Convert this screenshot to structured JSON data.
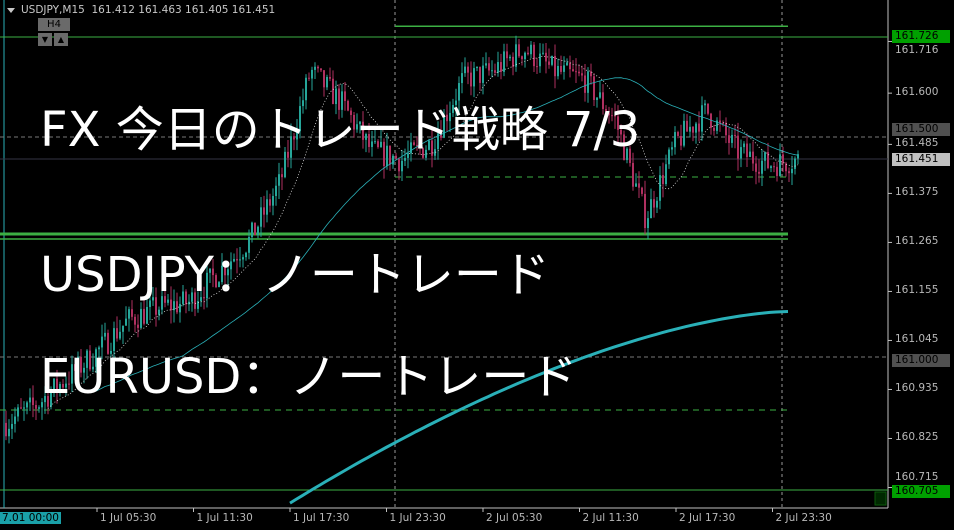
{
  "header": {
    "symbol": "USDJPY,M15",
    "ohlc": "161.412 161.463 161.405 161.451",
    "timeframe_badge": "H4"
  },
  "overlay_text": {
    "line1": "FX 今日のトレード戦略 7/3",
    "line2": "USDJPY：ノートレード",
    "line3": "EURUSD：ノートレード"
  },
  "price_axis": {
    "ticks": [
      "161.716",
      "161.600",
      "161.485",
      "161.375",
      "161.265",
      "161.155",
      "161.045",
      "160.935",
      "160.825",
      "160.715"
    ],
    "labels": [
      {
        "value": "161.726",
        "kind": "line",
        "color": "#00a000"
      },
      {
        "value": "161.500",
        "kind": "level",
        "color": "#505050"
      },
      {
        "value": "161.451",
        "kind": "bid",
        "color": "#c0c0c0"
      },
      {
        "value": "161.000",
        "kind": "level",
        "color": "#505050"
      },
      {
        "value": "160.705",
        "kind": "line",
        "color": "#00a000"
      }
    ]
  },
  "time_axis": {
    "current_label": "7.01 00:00",
    "ticks": [
      "1 Jul 05:30",
      "1 Jul 11:30",
      "1 Jul 17:30",
      "1 Jul 23:30",
      "2 Jul 05:30",
      "2 Jul 11:30",
      "2 Jul 17:30",
      "2 Jul 23:30"
    ]
  },
  "chart_data": {
    "type": "candlestick",
    "price_range": [
      160.68,
      161.78
    ],
    "approx_close_path": [
      160.86,
      160.9,
      160.96,
      161.02,
      161.09,
      161.12,
      161.13,
      161.2,
      161.27,
      161.4,
      161.65,
      161.58,
      161.47,
      161.45,
      161.49,
      161.63,
      161.65,
      161.7,
      161.65,
      161.63,
      161.54,
      161.32,
      161.49,
      161.56,
      161.47,
      161.44,
      161.451
    ],
    "levels": [
      161.75,
      161.726,
      161.5,
      161.41,
      161.28,
      161.0,
      160.89,
      160.705
    ],
    "colors": {
      "bull": "#26a69a",
      "bear": "#b03060",
      "level": "#3cb043",
      "ma": "#2ab0b8"
    }
  }
}
